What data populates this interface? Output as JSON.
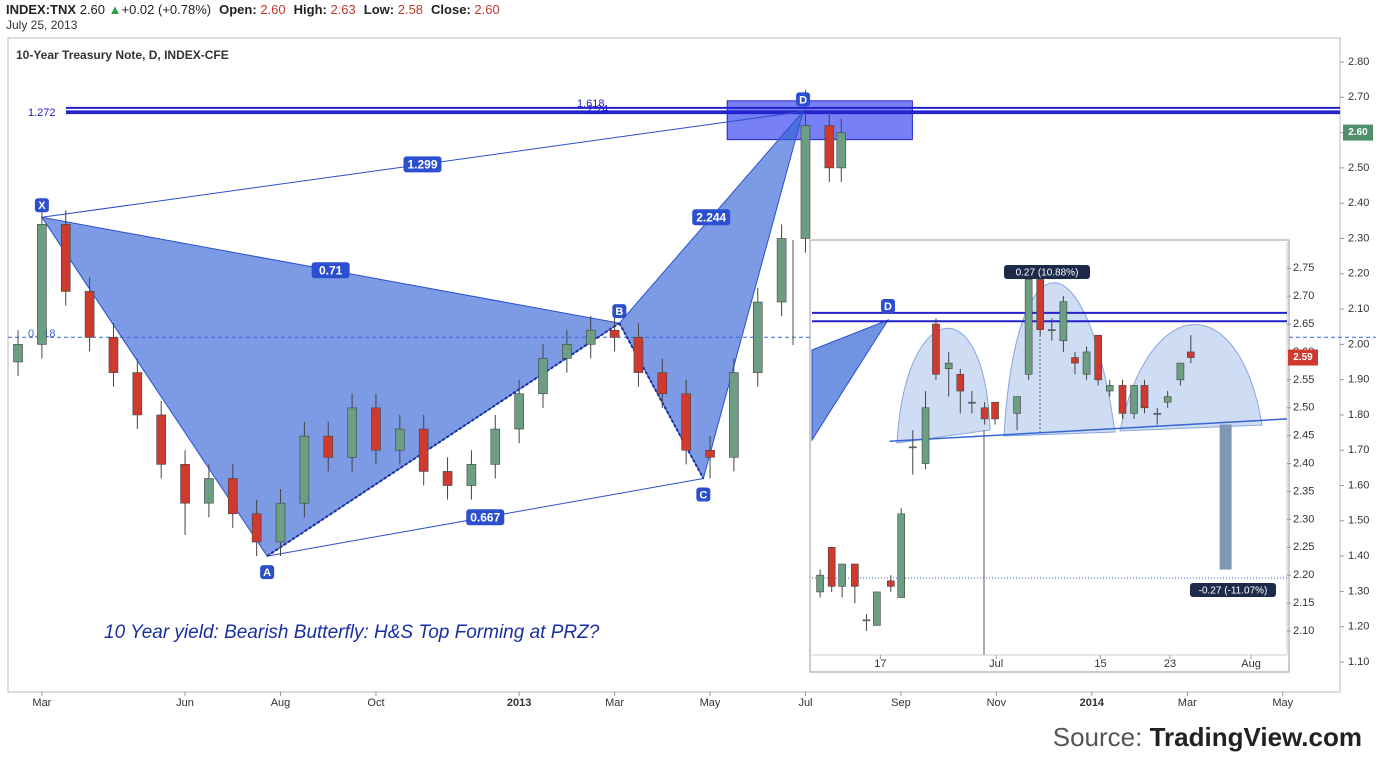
{
  "header": {
    "symbol": "INDEX:TNX",
    "last": "2.60",
    "change": "+0.02 (+0.78%)",
    "open_label": "Open:",
    "open": "2.60",
    "high_label": "High:",
    "high": "2.63",
    "low_label": "Low:",
    "low": "2.58",
    "close_label": "Close:",
    "close": "2.60",
    "date": "July 25, 2013"
  },
  "source": {
    "prefix": "Source:",
    "name": "TradingView.com"
  },
  "chart_data": [
    {
      "type": "candlestick",
      "title": "10-Year Treasury Note, D, INDEX-CFE",
      "annotation": "10 Year yield: Bearish Butterfly: H&S Top Forming at PRZ?",
      "last_price": {
        "value": 2.6,
        "label": "2.60"
      },
      "up_color": "#6b9e82",
      "down_color": "#cf3a2f",
      "x": [
        2.5,
        3.0,
        3.5,
        4.0,
        4.5,
        5.0,
        5.5,
        6.0,
        6.5,
        7.0,
        7.5,
        8.0,
        8.5,
        9.0,
        9.5,
        10.0,
        10.5,
        11.0,
        11.5,
        12.0,
        12.5,
        13.0,
        13.5,
        14.0,
        14.5,
        15.0,
        15.5,
        16.0,
        16.5,
        17.0,
        17.5,
        18.0,
        18.5,
        19.0,
        19.5,
        19.75
      ],
      "open": [
        1.95,
        2.0,
        2.34,
        2.15,
        2.02,
        1.92,
        1.8,
        1.66,
        1.55,
        1.62,
        1.52,
        1.44,
        1.55,
        1.74,
        1.68,
        1.82,
        1.7,
        1.76,
        1.64,
        1.6,
        1.66,
        1.76,
        1.86,
        1.96,
        2.0,
        2.04,
        2.02,
        1.92,
        1.86,
        1.7,
        1.68,
        1.92,
        2.12,
        2.3,
        2.62,
        2.5
      ],
      "high": [
        2.04,
        2.38,
        2.38,
        2.19,
        2.06,
        1.96,
        1.84,
        1.7,
        1.66,
        1.66,
        1.56,
        1.59,
        1.78,
        1.78,
        1.86,
        1.86,
        1.8,
        1.8,
        1.68,
        1.7,
        1.8,
        1.9,
        2.0,
        2.04,
        2.08,
        2.08,
        2.06,
        1.96,
        1.9,
        1.74,
        1.96,
        2.16,
        2.34,
        2.72,
        2.66,
        2.64
      ],
      "low": [
        1.91,
        1.96,
        2.11,
        1.98,
        1.88,
        1.76,
        1.62,
        1.46,
        1.51,
        1.48,
        1.4,
        1.4,
        1.51,
        1.64,
        1.64,
        1.66,
        1.66,
        1.6,
        1.56,
        1.56,
        1.62,
        1.72,
        1.82,
        1.92,
        1.96,
        1.98,
        1.88,
        1.82,
        1.66,
        1.62,
        1.64,
        1.88,
        2.08,
        2.26,
        2.46,
        2.46
      ],
      "close": [
        2.0,
        2.34,
        2.15,
        2.02,
        1.92,
        1.8,
        1.66,
        1.55,
        1.62,
        1.52,
        1.44,
        1.55,
        1.74,
        1.68,
        1.82,
        1.7,
        1.76,
        1.64,
        1.6,
        1.66,
        1.76,
        1.86,
        1.96,
        2.0,
        2.04,
        2.02,
        1.92,
        1.86,
        1.7,
        1.68,
        1.92,
        2.12,
        2.3,
        2.62,
        2.5,
        2.6
      ],
      "xlim": [
        2.29,
        30.2
      ],
      "ylim": [
        1.015,
        2.868
      ],
      "xticks": [
        {
          "value": 3,
          "label": "Mar"
        },
        {
          "value": 6,
          "label": "Jun"
        },
        {
          "value": 8,
          "label": "Aug"
        },
        {
          "value": 10,
          "label": "Oct"
        },
        {
          "value": 13,
          "label": "2013"
        },
        {
          "value": 15,
          "label": "Mar"
        },
        {
          "value": 17,
          "label": "May"
        },
        {
          "value": 19,
          "label": "Jul"
        },
        {
          "value": 21,
          "label": "Sep"
        },
        {
          "value": 23,
          "label": "Nov"
        },
        {
          "value": 25,
          "label": "2014"
        },
        {
          "value": 27,
          "label": "Mar"
        },
        {
          "value": 29,
          "label": "May"
        }
      ],
      "yticks": [
        {
          "value": 2.8,
          "label": "2.80"
        },
        {
          "value": 2.7,
          "label": "2.70"
        },
        {
          "value": 2.6,
          "label": "2.60"
        },
        {
          "value": 2.5,
          "label": "2.50"
        },
        {
          "value": 2.4,
          "label": "2.40"
        },
        {
          "value": 2.3,
          "label": "2.30"
        },
        {
          "value": 2.2,
          "label": "2.20"
        },
        {
          "value": 2.1,
          "label": "2.10"
        },
        {
          "value": 2.0,
          "label": "2.00"
        },
        {
          "value": 1.9,
          "label": "1.90"
        },
        {
          "value": 1.8,
          "label": "1.80"
        },
        {
          "value": 1.7,
          "label": "1.70"
        },
        {
          "value": 1.6,
          "label": "1.60"
        },
        {
          "value": 1.5,
          "label": "1.50"
        },
        {
          "value": 1.4,
          "label": "1.40"
        },
        {
          "value": 1.3,
          "label": "1.30"
        },
        {
          "value": 1.2,
          "label": "1.20"
        },
        {
          "value": 1.1,
          "label": "1.10"
        }
      ],
      "pattern": {
        "color": "#3566d6",
        "points": [
          {
            "label": "X",
            "x": 3.0,
            "y": 2.36
          },
          {
            "label": "A",
            "x": 7.72,
            "y": 1.4
          },
          {
            "label": "B",
            "x": 15.1,
            "y": 2.06
          },
          {
            "label": "C",
            "x": 16.86,
            "y": 1.62
          },
          {
            "label": "D",
            "x": 18.95,
            "y": 2.66
          }
        ],
        "ratios": [
          "0.71",
          "1.299",
          "2.244",
          "0.667"
        ]
      },
      "levels": [
        {
          "label": "1.618",
          "value": 2.67
        },
        {
          "label": "2.24",
          "value": 2.66
        },
        {
          "label": "1.272",
          "value": 2.655
        }
      ],
      "retracement": {
        "label": "0.618",
        "value": 2.02
      },
      "prz": {
        "x": [
          17.36,
          21.24
        ],
        "y": [
          2.58,
          2.69
        ]
      }
    },
    {
      "type": "candlestick",
      "up_color": "#6b9e82",
      "down_color": "#cf3a2f",
      "last_price": {
        "value": 2.59,
        "label": "2.59"
      },
      "x": [
        -5.2,
        -4.2,
        -3.3,
        -2.2,
        -1.2,
        -0.3,
        0.9,
        1.8,
        2.8,
        3.9,
        4.8,
        5.9,
        6.9,
        7.9,
        9.0,
        9.9,
        11.8,
        12.8,
        13.8,
        14.8,
        15.8,
        16.8,
        17.8,
        18.8,
        19.8,
        20.9,
        21.9,
        22.8,
        23.9,
        24.8,
        25.9,
        26.8
      ],
      "open": [
        2.17,
        2.25,
        2.18,
        2.22,
        2.12,
        2.11,
        2.19,
        2.16,
        2.43,
        2.4,
        2.65,
        2.57,
        2.56,
        2.51,
        2.5,
        2.51,
        2.49,
        2.56,
        2.73,
        2.64,
        2.62,
        2.59,
        2.56,
        2.63,
        2.53,
        2.54,
        2.49,
        2.54,
        2.49,
        2.51,
        2.55,
        2.6
      ],
      "high": [
        2.21,
        2.25,
        2.22,
        2.22,
        2.13,
        2.17,
        2.2,
        2.32,
        2.46,
        2.53,
        2.66,
        2.6,
        2.57,
        2.53,
        2.51,
        2.51,
        2.52,
        2.74,
        2.73,
        2.66,
        2.7,
        2.6,
        2.61,
        2.63,
        2.55,
        2.55,
        2.54,
        2.55,
        2.5,
        2.53,
        2.58,
        2.63
      ],
      "low": [
        2.16,
        2.17,
        2.16,
        2.15,
        2.1,
        2.11,
        2.17,
        2.16,
        2.38,
        2.39,
        2.55,
        2.52,
        2.49,
        2.49,
        2.47,
        2.47,
        2.46,
        2.55,
        2.63,
        2.62,
        2.6,
        2.56,
        2.55,
        2.54,
        2.52,
        2.48,
        2.48,
        2.49,
        2.47,
        2.5,
        2.54,
        2.58
      ],
      "close": [
        2.2,
        2.18,
        2.22,
        2.18,
        2.12,
        2.17,
        2.18,
        2.31,
        2.43,
        2.5,
        2.56,
        2.58,
        2.53,
        2.51,
        2.48,
        2.48,
        2.52,
        2.73,
        2.64,
        2.64,
        2.69,
        2.58,
        2.6,
        2.55,
        2.54,
        2.49,
        2.54,
        2.5,
        2.49,
        2.52,
        2.58,
        2.59
      ],
      "xlim": [
        -5.9,
        35.1
      ],
      "ylim": [
        2.057,
        2.797
      ],
      "xticks": [
        {
          "value": 0,
          "label": "17"
        },
        {
          "value": 10,
          "label": "Jul"
        },
        {
          "value": 19,
          "label": "15"
        },
        {
          "value": 25,
          "label": "23"
        },
        {
          "value": 32,
          "label": "Aug"
        }
      ],
      "yticks": [
        2.75,
        {
          "value": 2.7,
          "label": "2.70"
        },
        2.65,
        {
          "value": 2.6,
          "label": "2.60"
        },
        2.55,
        {
          "value": 2.5,
          "label": "2.50"
        },
        2.45,
        {
          "value": 2.4,
          "label": "2.40"
        },
        2.35,
        {
          "value": 2.3,
          "label": "2.30"
        },
        2.25,
        {
          "value": 2.2,
          "label": "2.20"
        },
        2.15,
        {
          "value": 2.1,
          "label": "2.10"
        }
      ],
      "levels": [
        2.67,
        2.655
      ],
      "neckline": {
        "x": [
          0.8,
          35.1
        ],
        "y": [
          2.44,
          2.48
        ]
      },
      "target_line": 2.195,
      "target": {
        "x": 29.8,
        "from": 2.47,
        "to": 2.21
      },
      "head_label": "0.27 (10.88%)",
      "target_label": "-0.27 (-11.07%)",
      "d_label": "D"
    }
  ]
}
